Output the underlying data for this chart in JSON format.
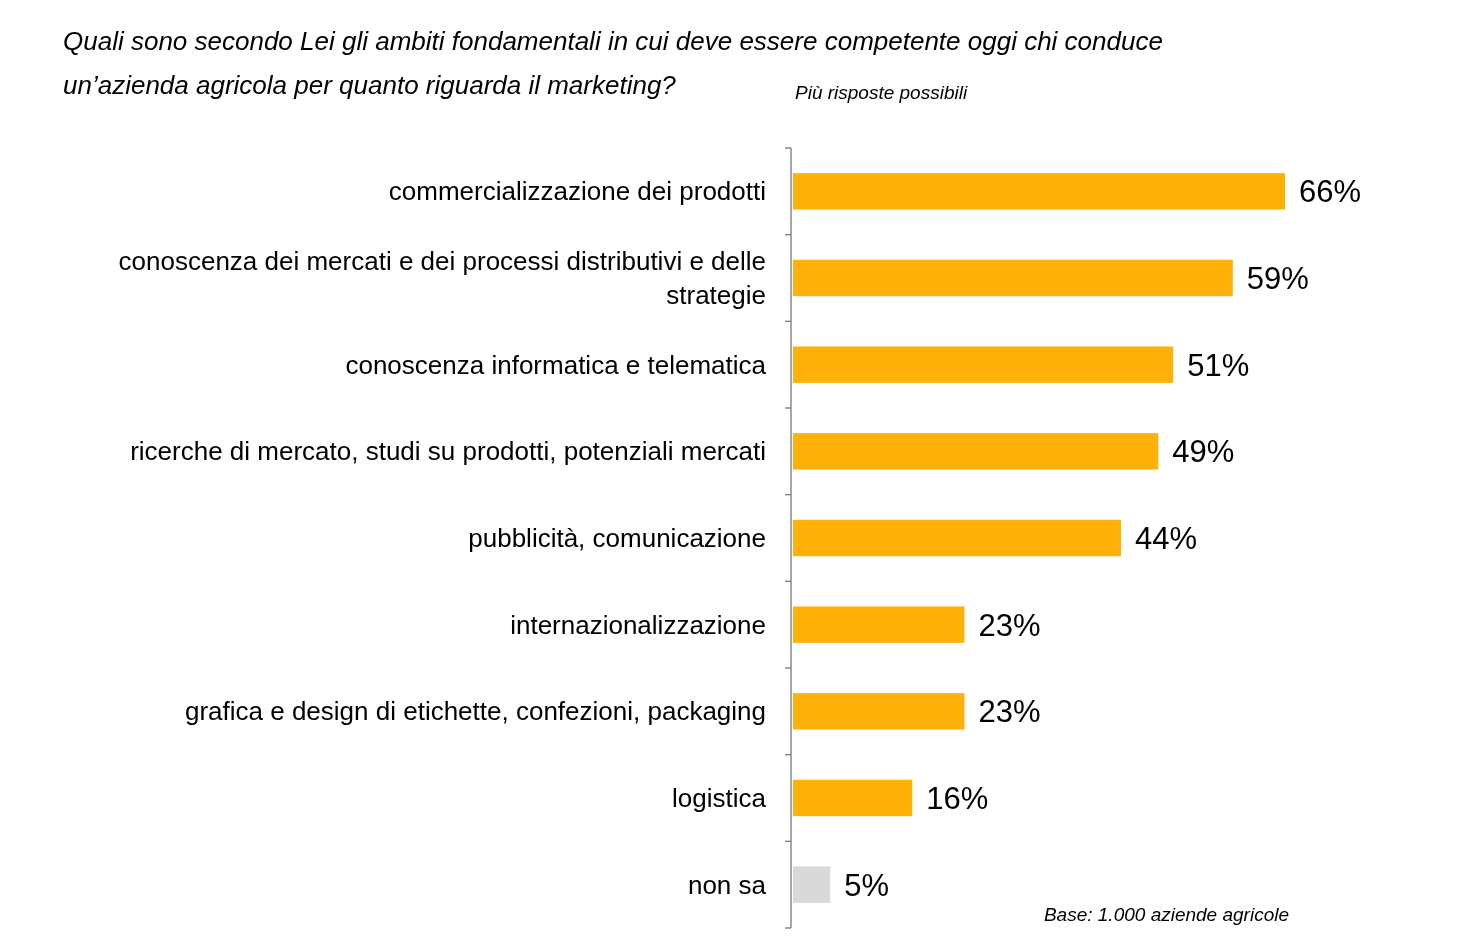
{
  "chart_data": {
    "type": "bar",
    "orientation": "horizontal",
    "title": "Quali sono secondo Lei gli ambiti fondamentali in cui deve essere competente oggi chi conduce un’azienda agricola per quanto riguarda il marketing?",
    "subtitle": "Più risposte possibili",
    "categories": [
      "commercializzazione dei prodotti",
      "conoscenza dei mercati e dei processi distributivi e delle strategie",
      "conoscenza informatica e telematica",
      "ricerche di mercato, studi su prodotti, potenziali mercati",
      "pubblicità, comunicazione",
      "internazionalizzazione",
      "grafica e design di etichette, confezioni, packaging",
      "logistica",
      "non sa"
    ],
    "values": [
      66,
      59,
      51,
      49,
      44,
      23,
      23,
      16,
      5
    ],
    "value_labels": [
      "66%",
      "59%",
      "51%",
      "49%",
      "44%",
      "23%",
      "23%",
      "16%",
      "5%"
    ],
    "colors": [
      "#ffb10a",
      "#ffb10a",
      "#ffb10a",
      "#ffb10a",
      "#ffb10a",
      "#ffb10a",
      "#ffb10a",
      "#ffb10a",
      "#d9d9d9"
    ],
    "annotations": [
      "Base: 1.000 aziende agricole"
    ],
    "grid": false
  }
}
